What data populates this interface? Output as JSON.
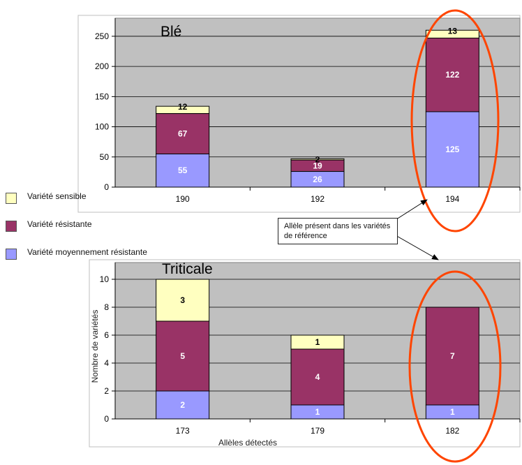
{
  "chart_data": [
    {
      "type": "bar",
      "stacked": true,
      "title": "Blé",
      "xlabel": "",
      "ylabel": "",
      "categories": [
        "190",
        "192",
        "194"
      ],
      "series": [
        {
          "name": "Variété moyennement résistante",
          "values": [
            55,
            26,
            125
          ]
        },
        {
          "name": "Variété résistante",
          "values": [
            67,
            19,
            122
          ]
        },
        {
          "name": "Variété sensible",
          "values": [
            12,
            2,
            13
          ]
        }
      ],
      "ylim": [
        0,
        280
      ],
      "yticks": [
        "0",
        "50",
        "100",
        "150",
        "200",
        "250"
      ],
      "grid": true,
      "highlighted_category": "194"
    },
    {
      "type": "bar",
      "stacked": true,
      "title": "Triticale",
      "xlabel": "Allèles détectés",
      "ylabel": "Nombre de variétés",
      "categories": [
        "173",
        "179",
        "182"
      ],
      "series": [
        {
          "name": "Variété moyennement résistante",
          "values": [
            2,
            1,
            1
          ]
        },
        {
          "name": "Variété résistante",
          "values": [
            5,
            4,
            7
          ]
        },
        {
          "name": "Variété sensible",
          "values": [
            3,
            1,
            0
          ]
        }
      ],
      "ylim": [
        0,
        11.2
      ],
      "yticks": [
        "0",
        "2",
        "4",
        "6",
        "8",
        "10"
      ],
      "grid": true,
      "highlighted_category": "182"
    }
  ],
  "legend": [
    {
      "label": "Variété sensible",
      "color": "#ffffc0"
    },
    {
      "label": "Variété résistante",
      "color": "#993366"
    },
    {
      "label": "Variété moyennement résistante",
      "color": "#9999ff"
    }
  ],
  "callout": {
    "text": "Allèle présent dans les variétés de référence"
  },
  "colors": {
    "plot_bg": "#c0c0c0",
    "highlight_ellipse": "#ff4500",
    "segment_label_light": "#ffffff",
    "segment_label_dark": "#000000"
  }
}
